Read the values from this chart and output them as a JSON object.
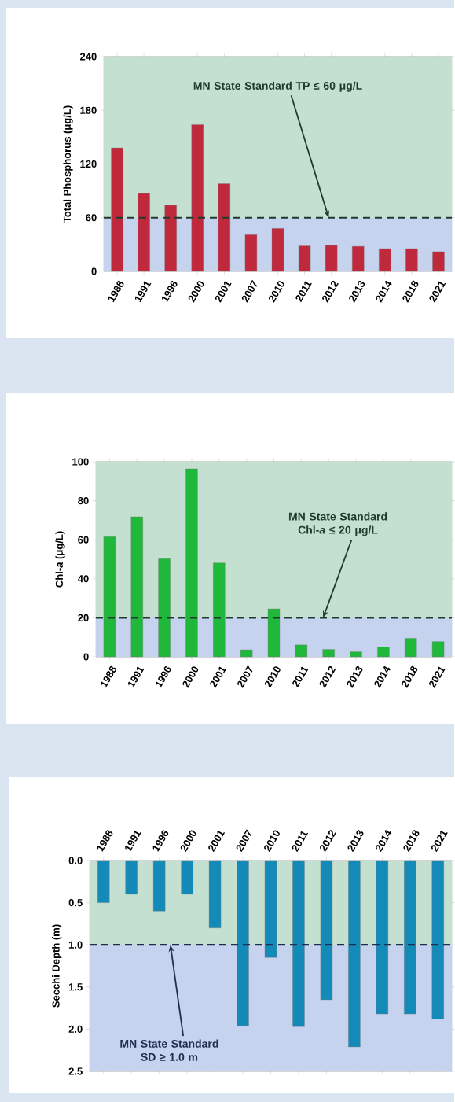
{
  "chart_data": [
    {
      "type": "bar",
      "ylabel": "Total Phosphorus (μg/L)",
      "categories": [
        "1988",
        "1991",
        "1996",
        "2000",
        "2001",
        "2007",
        "2010",
        "2011",
        "2012",
        "2013",
        "2014",
        "2018",
        "2021"
      ],
      "values": [
        138,
        87,
        74,
        164,
        98,
        41,
        48,
        28.5,
        29,
        28,
        25.5,
        25.5,
        22
      ],
      "color": "#c0283c",
      "ylim": [
        0,
        240
      ],
      "yticks": [
        0,
        60,
        120,
        180,
        240
      ],
      "grid": "y",
      "bands": [
        {
          "axis": "y",
          "from": 60,
          "to": 240,
          "color": "#c4e0d0"
        },
        {
          "axis": "y",
          "from": 0,
          "to": 60,
          "color": "#c5d3ee"
        }
      ],
      "ref_lines": [
        {
          "axis": "y",
          "value": 60,
          "label": "MN State Standard TP ≤ 60 μg/L",
          "color": "#1e3b2e",
          "line_style": "dashed"
        }
      ]
    },
    {
      "type": "bar",
      "ylabel": "Chl-*a* (μg/L)",
      "categories": [
        "1988",
        "1991",
        "1996",
        "2000",
        "2001",
        "2007",
        "2010",
        "2011",
        "2012",
        "2013",
        "2014",
        "2018",
        "2021"
      ],
      "values": [
        61.6,
        71.8,
        50.3,
        96.4,
        48.1,
        3.6,
        24.6,
        6.1,
        3.8,
        2.6,
        5,
        9.5,
        7.8
      ],
      "color": "#1fb83a",
      "ylim": [
        0,
        100
      ],
      "yticks": [
        0,
        20,
        40,
        60,
        80,
        100
      ],
      "grid": "y",
      "bands": [
        {
          "axis": "y",
          "from": 20,
          "to": 100,
          "color": "#c4e0d0"
        },
        {
          "axis": "y",
          "from": 0,
          "to": 20,
          "color": "#c5d3ee"
        }
      ],
      "ref_lines": [
        {
          "axis": "y",
          "value": 20,
          "label": "MN State Standard Chl-*a* ≤ 20 μg/L",
          "color": "#1e3b2e",
          "line_style": "dashed"
        }
      ]
    },
    {
      "type": "bar",
      "ylabel": "Secchi Depth (m)",
      "categories": [
        "1988",
        "1991",
        "1996",
        "2000",
        "2001",
        "2007",
        "2010",
        "2011",
        "2012",
        "2013",
        "2014",
        "2018",
        "2021"
      ],
      "values": [
        0.5,
        0.4,
        0.6,
        0.4,
        0.8,
        1.96,
        1.15,
        1.97,
        1.65,
        2.21,
        1.82,
        1.82,
        1.88
      ],
      "color": "#148ab8",
      "ylim": [
        2.5,
        0
      ],
      "yticks": [
        {
          "value": 0,
          "label": "0.0"
        },
        {
          "value": 0.5,
          "label": "0.5"
        },
        {
          "value": 1,
          "label": "1.0"
        },
        {
          "value": 1.5,
          "label": "1.5"
        },
        {
          "value": 2,
          "label": "2.0"
        },
        {
          "value": 2.5,
          "label": "2.5"
        }
      ],
      "grid": "y",
      "bands": [
        {
          "axis": "y",
          "from": 0,
          "to": 1,
          "color": "#c4e0d0"
        },
        {
          "axis": "y",
          "from": 1,
          "to": 2.5,
          "color": "#c5d3ee"
        }
      ],
      "ref_lines": [
        {
          "axis": "y",
          "value": 1,
          "label": "MN State Standard SD ≥ 1.0 m",
          "color": "#1f2d50",
          "line_style": "dashed"
        }
      ]
    }
  ]
}
